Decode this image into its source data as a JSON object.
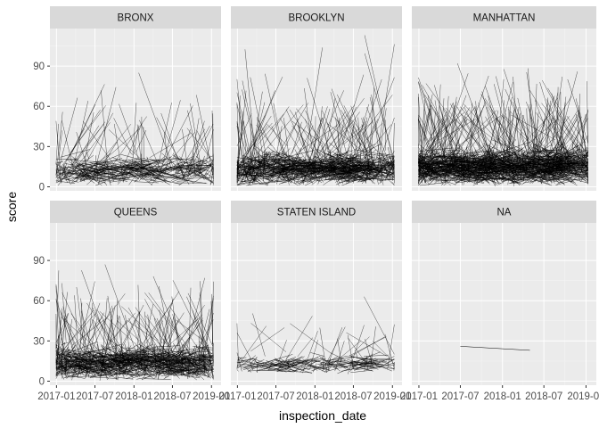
{
  "chart_data": {
    "type": "line",
    "facet_by": "boro",
    "xlabel": "inspection_date",
    "ylabel": "score",
    "x_ticks": [
      "2017-01",
      "2017-07",
      "2018-01",
      "2018-07",
      "2019-01"
    ],
    "xlim": [
      "2016-12-01",
      "2019-02-15"
    ],
    "y_ticks": [
      0,
      30,
      60,
      90
    ],
    "ylim": [
      -3,
      118
    ],
    "grid": true,
    "colors": {
      "panel_bg": "#ebebeb",
      "grid_major": "#ffffff",
      "strip_bg": "#d9d9d9",
      "line": "#000000"
    },
    "panels": [
      {
        "label": "BRONX",
        "density": 1,
        "typical_range": [
          0,
          40
        ],
        "max_score": 85
      },
      {
        "label": "BROOKLYN",
        "density": 2,
        "typical_range": [
          0,
          45
        ],
        "max_score": 113
      },
      {
        "label": "MANHATTAN",
        "density": 3,
        "typical_range": [
          0,
          50
        ],
        "max_score": 92
      },
      {
        "label": "QUEENS",
        "density": 2,
        "typical_range": [
          0,
          45
        ],
        "max_score": 87
      },
      {
        "label": "STATEN ISLAND",
        "density": 0.5,
        "typical_range": [
          5,
          30
        ],
        "max_score": 63
      },
      {
        "label": "NA",
        "density": 0,
        "segments": [
          {
            "x1": "2017-07-01",
            "y1": 26,
            "x2": "2018-05-01",
            "y2": 23
          }
        ]
      }
    ]
  }
}
